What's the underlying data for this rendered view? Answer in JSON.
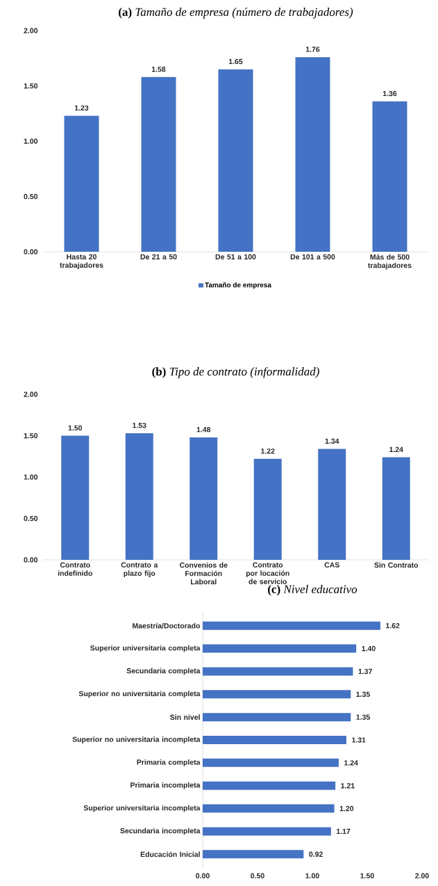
{
  "chart_data": [
    {
      "type": "bar",
      "title": "**(a)** *Tamaño de empresa (número de trabajadores)*",
      "categories": [
        "Hasta 20 trabajadores",
        "De 21 a 50",
        "De 51 a 100",
        "De 101 a 500",
        "Más de 500 trabajadores"
      ],
      "series": [
        {
          "name": "Tamaño de empresa",
          "color": "#4472c4",
          "values": [
            1.23,
            1.58,
            1.65,
            1.76,
            1.36
          ],
          "value_labels": [
            "1.23",
            "1.58",
            "1.65",
            "1.76",
            "1.36"
          ]
        }
      ],
      "ylim": [
        0,
        2
      ],
      "yticks": [
        {
          "value": 0,
          "label": "0.00"
        },
        {
          "value": 0.5,
          "label": "0.50"
        },
        {
          "value": 1,
          "label": "1.00"
        },
        {
          "value": 1.5,
          "label": "1.50"
        },
        {
          "value": 2,
          "label": "2.00"
        }
      ],
      "legend": "bottom"
    },
    {
      "type": "bar",
      "title": "**(b)** *Tipo de contrato (informalidad)*",
      "categories": [
        "Contrato indefinido",
        "Contrato a plazo fijo",
        "Convenios de Formación Laboral",
        "Contrato por locación de servicio",
        "CAS",
        "Sin Contrato"
      ],
      "series": [
        {
          "color": "#4472c4",
          "values": [
            1.5,
            1.53,
            1.48,
            1.22,
            1.34,
            1.24
          ],
          "value_labels": [
            "1.50",
            "1.53",
            "1.48",
            "1.22",
            "1.34",
            "1.24"
          ]
        }
      ],
      "ylim": [
        0,
        2
      ],
      "yticks": [
        {
          "value": 0,
          "label": "0.00"
        },
        {
          "value": 0.5,
          "label": "0.50"
        },
        {
          "value": 1,
          "label": "1.00"
        },
        {
          "value": 1.5,
          "label": "1.50"
        },
        {
          "value": 2,
          "label": "2.00"
        }
      ]
    },
    {
      "type": "bar",
      "orientation": "horizontal",
      "title": "**(c)** *Nivel educativo*",
      "categories": [
        "Maestría/Doctorado",
        "Superior universitaria completa",
        "Secundaria completa",
        "Superior no universitaria completa",
        "Sin nivel",
        "Superior no universitaria incompleta",
        "Primaria completa",
        "Primaria incompleta",
        "Superior universitaria incompleta",
        "Secundaria incompleta",
        "Educación Inicial"
      ],
      "series": [
        {
          "color": "#4472c4",
          "values": [
            1.62,
            1.4,
            1.37,
            1.35,
            1.35,
            1.31,
            1.24,
            1.21,
            1.2,
            1.17,
            0.92
          ],
          "value_labels": [
            "1.62",
            "1.40",
            "1.37",
            "1.35",
            "1.35",
            "1.31",
            "1.24",
            "1.21",
            "1.20",
            "1.17",
            "0.92"
          ]
        }
      ],
      "xlim": [
        0,
        2
      ],
      "xticks": [
        {
          "value": 0,
          "label": "0.00"
        },
        {
          "value": 0.5,
          "label": "0.50"
        },
        {
          "value": 1,
          "label": "1.00"
        },
        {
          "value": 1.5,
          "label": "1.50"
        },
        {
          "value": 2,
          "label": "2.00"
        }
      ]
    }
  ]
}
